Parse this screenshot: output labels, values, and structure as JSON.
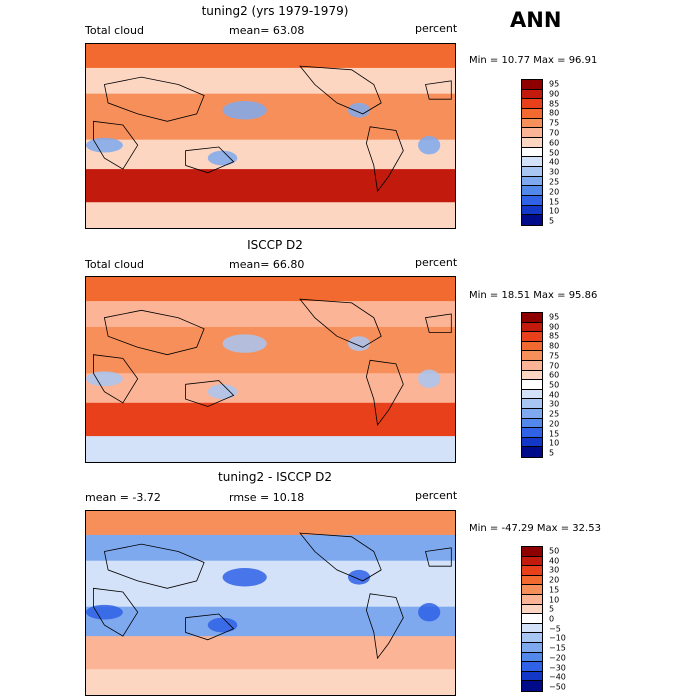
{
  "header": {
    "season": "ANN"
  },
  "panels": [
    {
      "title": "tuning2 (yrs 1979-1979)",
      "left_label": "Total cloud",
      "mid_label": "mean=  63.08",
      "right_label": "percent",
      "minmax": "Min =  10.77 Max =  96.91",
      "colorbar": {
        "labels": [
          "95",
          "90",
          "85",
          "80",
          "75",
          "70",
          "60",
          "50",
          "40",
          "30",
          "25",
          "20",
          "15",
          "10",
          "5"
        ],
        "colors": [
          "#8e0000",
          "#c21a0c",
          "#e8401a",
          "#f26a30",
          "#f78f5a",
          "#fbb496",
          "#fdd6c2",
          "#ffffff",
          "#d3e2f8",
          "#a8c6f2",
          "#7ea9ee",
          "#5288ea",
          "#2f62e6",
          "#1338c8",
          "#000b8a"
        ]
      },
      "regions": {
        "polar_north": "#f26a30",
        "subtropics": "#fdd6c2",
        "tropics": "#f78f5a",
        "southern_storm": "#c21a0c",
        "antarctic": "#fdd6c2",
        "desert": "#7ea9ee"
      }
    },
    {
      "title": "ISCCP D2",
      "left_label": "Total cloud",
      "mid_label": "mean=  66.80",
      "right_label": "percent",
      "minmax": "Min =  18.51 Max =  95.86",
      "colorbar": {
        "labels": [
          "95",
          "90",
          "85",
          "80",
          "75",
          "70",
          "60",
          "50",
          "40",
          "30",
          "25",
          "20",
          "15",
          "10",
          "5"
        ],
        "colors": [
          "#8e0000",
          "#c21a0c",
          "#e8401a",
          "#f26a30",
          "#f78f5a",
          "#fbb496",
          "#fdd6c2",
          "#ffffff",
          "#d3e2f8",
          "#a8c6f2",
          "#7ea9ee",
          "#5288ea",
          "#2f62e6",
          "#1338c8",
          "#000b8a"
        ]
      },
      "regions": {
        "polar_north": "#f26a30",
        "subtropics": "#fbb496",
        "tropics": "#f78f5a",
        "southern_storm": "#e8401a",
        "antarctic": "#d3e2f8",
        "desert": "#a8c6f2"
      }
    },
    {
      "title": "tuning2 - ISCCP D2",
      "left_label": "mean =   -3.72",
      "mid_label": "rmse =   10.18",
      "right_label": "percent",
      "minmax": "Min = -47.29 Max =  32.53",
      "colorbar": {
        "labels": [
          "50",
          "40",
          "30",
          "20",
          "15",
          "10",
          "5",
          "0",
          "−5",
          "−10",
          "−15",
          "−20",
          "−30",
          "−40",
          "−50"
        ],
        "colors": [
          "#8e0000",
          "#c21a0c",
          "#e8401a",
          "#f26a30",
          "#f78f5a",
          "#fbb496",
          "#fdd6c2",
          "#ffffff",
          "#d3e2f8",
          "#a8c6f2",
          "#7ea9ee",
          "#5288ea",
          "#2f62e6",
          "#1338c8",
          "#000b8a"
        ]
      },
      "regions": {
        "polar_north": "#f78f5a",
        "subtropics": "#7ea9ee",
        "tropics": "#d3e2f8",
        "southern_storm": "#fbb496",
        "antarctic": "#fdd6c2",
        "desert": "#2f62e6"
      }
    }
  ],
  "chart_data": [
    {
      "type": "heatmap",
      "title": "tuning2 (yrs 1979-1979)",
      "variable": "Total cloud",
      "units": "percent",
      "mean": 63.08,
      "min": 10.77,
      "max": 96.91,
      "levels": [
        5,
        10,
        15,
        20,
        25,
        30,
        40,
        50,
        60,
        70,
        75,
        80,
        85,
        90,
        95
      ]
    },
    {
      "type": "heatmap",
      "title": "ISCCP D2",
      "variable": "Total cloud",
      "units": "percent",
      "mean": 66.8,
      "min": 18.51,
      "max": 95.86,
      "levels": [
        5,
        10,
        15,
        20,
        25,
        30,
        40,
        50,
        60,
        70,
        75,
        80,
        85,
        90,
        95
      ]
    },
    {
      "type": "heatmap",
      "title": "tuning2 - ISCCP D2",
      "units": "percent",
      "mean": -3.72,
      "rmse": 10.18,
      "min": -47.29,
      "max": 32.53,
      "levels": [
        -50,
        -40,
        -30,
        -20,
        -15,
        -10,
        -5,
        0,
        5,
        10,
        15,
        20,
        30,
        40,
        50
      ]
    }
  ]
}
